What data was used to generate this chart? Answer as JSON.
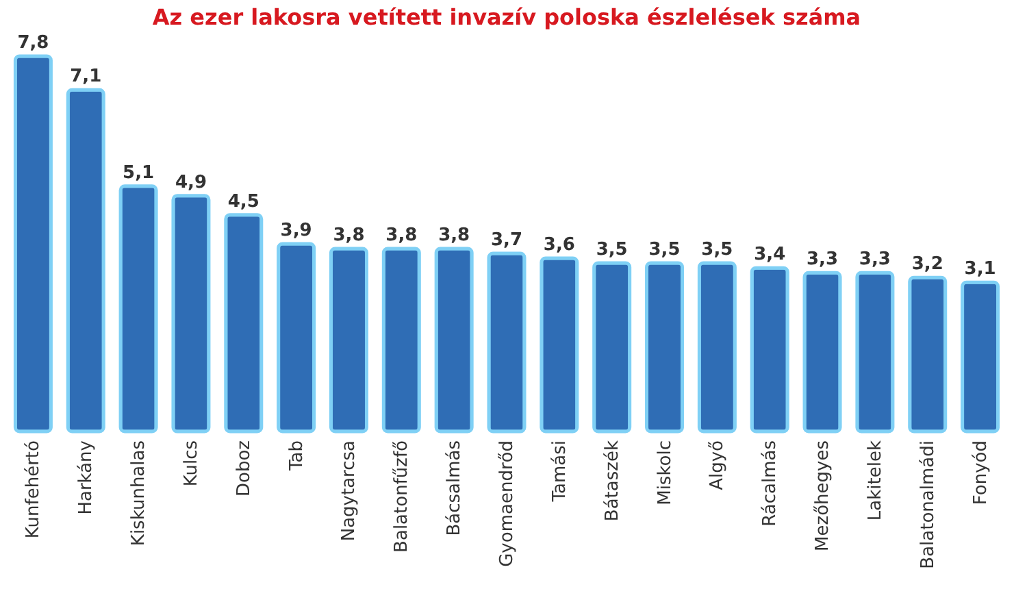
{
  "chart_data": {
    "type": "bar",
    "title": "Az ezer lakosra vetített invazív poloska észlelések száma",
    "categories": [
      "Kunfehértó",
      "Harkány",
      "Kiskunhalas",
      "Kulcs",
      "Doboz",
      "Tab",
      "Nagytarcsa",
      "Balatonfűzfő",
      "Bácsalmás",
      "Gyomaendrőd",
      "Tamási",
      "Bátaszék",
      "Miskolc",
      "Algyő",
      "Rácalmás",
      "Mezőhegyes",
      "Lakitelek",
      "Balatonalmádi",
      "Fonyód"
    ],
    "values": [
      7.8,
      7.1,
      5.1,
      4.9,
      4.5,
      3.9,
      3.8,
      3.8,
      3.8,
      3.7,
      3.6,
      3.5,
      3.5,
      3.5,
      3.4,
      3.3,
      3.3,
      3.2,
      3.1
    ],
    "value_labels": [
      "7,8",
      "7,1",
      "5,1",
      "4,9",
      "4,5",
      "3,9",
      "3,8",
      "3,8",
      "3,8",
      "3,7",
      "3,6",
      "3,5",
      "3,5",
      "3,5",
      "3,4",
      "3,3",
      "3,3",
      "3,2",
      "3,1"
    ],
    "color": "#2f6db5",
    "grid": false
  }
}
